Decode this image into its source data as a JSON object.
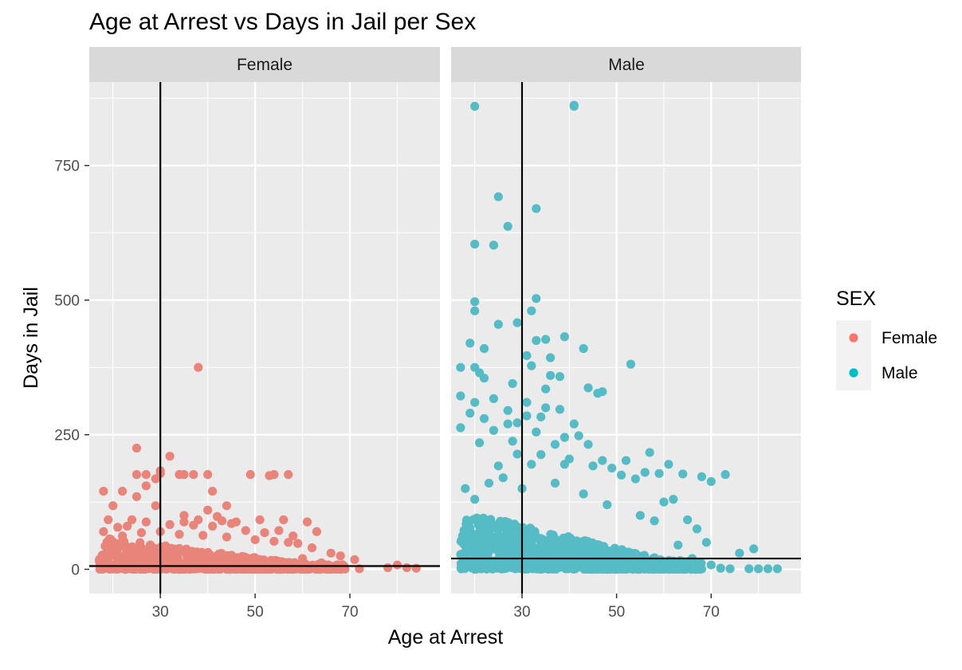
{
  "chart_data": {
    "type": "scatter",
    "title": "Age at Arrest vs Days in Jail per Sex",
    "xlabel": "Age at Arrest",
    "ylabel": "Days in Jail",
    "xlim": [
      15,
      89
    ],
    "ylim": [
      -45,
      905
    ],
    "x_ticks": [
      30,
      50,
      70
    ],
    "x_minor": [
      20,
      40,
      60,
      80
    ],
    "y_ticks": [
      0,
      250,
      500,
      750
    ],
    "y_minor": [
      125,
      375,
      625,
      875
    ],
    "grid": true,
    "legend": {
      "title": "SEX",
      "position": "right",
      "entries": [
        {
          "label": "Female",
          "color": "#F8766D"
        },
        {
          "label": "Male",
          "color": "#00BFC4"
        }
      ]
    },
    "panels": [
      {
        "strip": "Female",
        "color": "#E8847A",
        "vline_x": 30,
        "hline_y": 6,
        "points": [
          [
            38,
            375
          ],
          [
            25,
            225
          ],
          [
            32,
            210
          ],
          [
            30,
            183
          ],
          [
            30,
            178
          ],
          [
            25,
            176
          ],
          [
            27,
            176
          ],
          [
            34,
            176
          ],
          [
            35,
            176
          ],
          [
            37,
            176
          ],
          [
            40,
            176
          ],
          [
            49,
            176
          ],
          [
            53,
            174
          ],
          [
            54,
            176
          ],
          [
            57,
            176
          ],
          [
            29,
            168
          ],
          [
            22,
            145
          ],
          [
            18,
            145
          ],
          [
            41,
            145
          ],
          [
            27,
            155
          ],
          [
            25,
            135
          ],
          [
            20,
            118
          ],
          [
            29,
            118
          ],
          [
            44,
            118
          ],
          [
            40,
            110
          ],
          [
            35,
            100
          ],
          [
            42,
            98
          ],
          [
            19,
            92
          ],
          [
            24,
            92
          ],
          [
            27,
            88
          ],
          [
            35,
            88
          ],
          [
            38,
            92
          ],
          [
            43,
            90
          ],
          [
            46,
            88
          ],
          [
            51,
            92
          ],
          [
            56,
            92
          ],
          [
            61,
            88
          ],
          [
            32,
            83
          ],
          [
            21,
            78
          ],
          [
            23,
            80
          ],
          [
            37,
            82
          ],
          [
            41,
            80
          ],
          [
            45,
            85
          ],
          [
            48,
            72
          ],
          [
            52,
            68
          ],
          [
            55,
            72
          ],
          [
            58,
            62
          ],
          [
            63,
            70
          ],
          [
            18,
            70
          ],
          [
            22,
            62
          ],
          [
            26,
            68
          ],
          [
            30,
            70
          ],
          [
            34,
            65
          ],
          [
            39,
            63
          ],
          [
            44,
            60
          ],
          [
            50,
            55
          ],
          [
            54,
            52
          ],
          [
            59,
            48
          ],
          [
            62,
            40
          ],
          [
            66,
            30
          ],
          [
            68,
            25
          ],
          [
            57,
            50
          ],
          [
            71,
            18
          ],
          [
            80,
            8
          ],
          [
            82,
            3
          ],
          [
            84,
            2
          ],
          [
            72,
            1
          ],
          [
            78,
            3
          ],
          [
            64,
            12
          ],
          [
            60,
            20
          ]
        ],
        "band": {
          "x_from": 17,
          "x_to": 69,
          "y_from": 0,
          "y_to": 60
        }
      },
      {
        "strip": "Male",
        "color": "#55BCC5",
        "vline_x": 30,
        "hline_y": 20,
        "points": [
          [
            20,
            860
          ],
          [
            41,
            860
          ],
          [
            41,
            862
          ],
          [
            25,
            692
          ],
          [
            33,
            670
          ],
          [
            27,
            637
          ],
          [
            20,
            604
          ],
          [
            24,
            602
          ],
          [
            33,
            503
          ],
          [
            20,
            497
          ],
          [
            32,
            480
          ],
          [
            20,
            480
          ],
          [
            29,
            458
          ],
          [
            25,
            455
          ],
          [
            39,
            432
          ],
          [
            33,
            425
          ],
          [
            35,
            427
          ],
          [
            31,
            397
          ],
          [
            22,
            410
          ],
          [
            43,
            410
          ],
          [
            19,
            420
          ],
          [
            36,
            393
          ],
          [
            20,
            375
          ],
          [
            17,
            375
          ],
          [
            32,
            378
          ],
          [
            21,
            365
          ],
          [
            36,
            360
          ],
          [
            38,
            358
          ],
          [
            53,
            381
          ],
          [
            22,
            355
          ],
          [
            28,
            345
          ],
          [
            35,
            335
          ],
          [
            44,
            337
          ],
          [
            46,
            327
          ],
          [
            47,
            330
          ],
          [
            17,
            322
          ],
          [
            20,
            310
          ],
          [
            24,
            317
          ],
          [
            31,
            310
          ],
          [
            19,
            290
          ],
          [
            27,
            295
          ],
          [
            35,
            300
          ],
          [
            38,
            297
          ],
          [
            22,
            280
          ],
          [
            31,
            285
          ],
          [
            34,
            283
          ],
          [
            27,
            270
          ],
          [
            29,
            272
          ],
          [
            41,
            270
          ],
          [
            17,
            263
          ],
          [
            24,
            258
          ],
          [
            33,
            255
          ],
          [
            42,
            248
          ],
          [
            21,
            235
          ],
          [
            28,
            238
          ],
          [
            39,
            245
          ],
          [
            57,
            217
          ],
          [
            37,
            232
          ],
          [
            44,
            232
          ],
          [
            29,
            214
          ],
          [
            34,
            213
          ],
          [
            40,
            205
          ],
          [
            47,
            202
          ],
          [
            52,
            202
          ],
          [
            61,
            195
          ],
          [
            25,
            192
          ],
          [
            32,
            195
          ],
          [
            39,
            195
          ],
          [
            45,
            192
          ],
          [
            49,
            188
          ],
          [
            56,
            180
          ],
          [
            59,
            178
          ],
          [
            64,
            177
          ],
          [
            68,
            172
          ],
          [
            70,
            163
          ],
          [
            73,
            176
          ],
          [
            51,
            175
          ],
          [
            54,
            168
          ],
          [
            62,
            130
          ],
          [
            60,
            125
          ],
          [
            65,
            92
          ],
          [
            67,
            75
          ],
          [
            69,
            50
          ],
          [
            76,
            30
          ],
          [
            79,
            38
          ],
          [
            84,
            1
          ],
          [
            80,
            1
          ],
          [
            82,
            1
          ],
          [
            78,
            1
          ],
          [
            74,
            1
          ],
          [
            72,
            2
          ],
          [
            70,
            8
          ],
          [
            66,
            20
          ],
          [
            63,
            45
          ],
          [
            58,
            90
          ],
          [
            55,
            100
          ],
          [
            48,
            120
          ],
          [
            43,
            140
          ],
          [
            37,
            160
          ],
          [
            30,
            150
          ],
          [
            26,
            170
          ],
          [
            23,
            160
          ],
          [
            18,
            150
          ],
          [
            20,
            130
          ]
        ],
        "band": {
          "x_from": 17,
          "x_to": 68,
          "y_from": 0,
          "y_to": 110
        }
      }
    ]
  }
}
